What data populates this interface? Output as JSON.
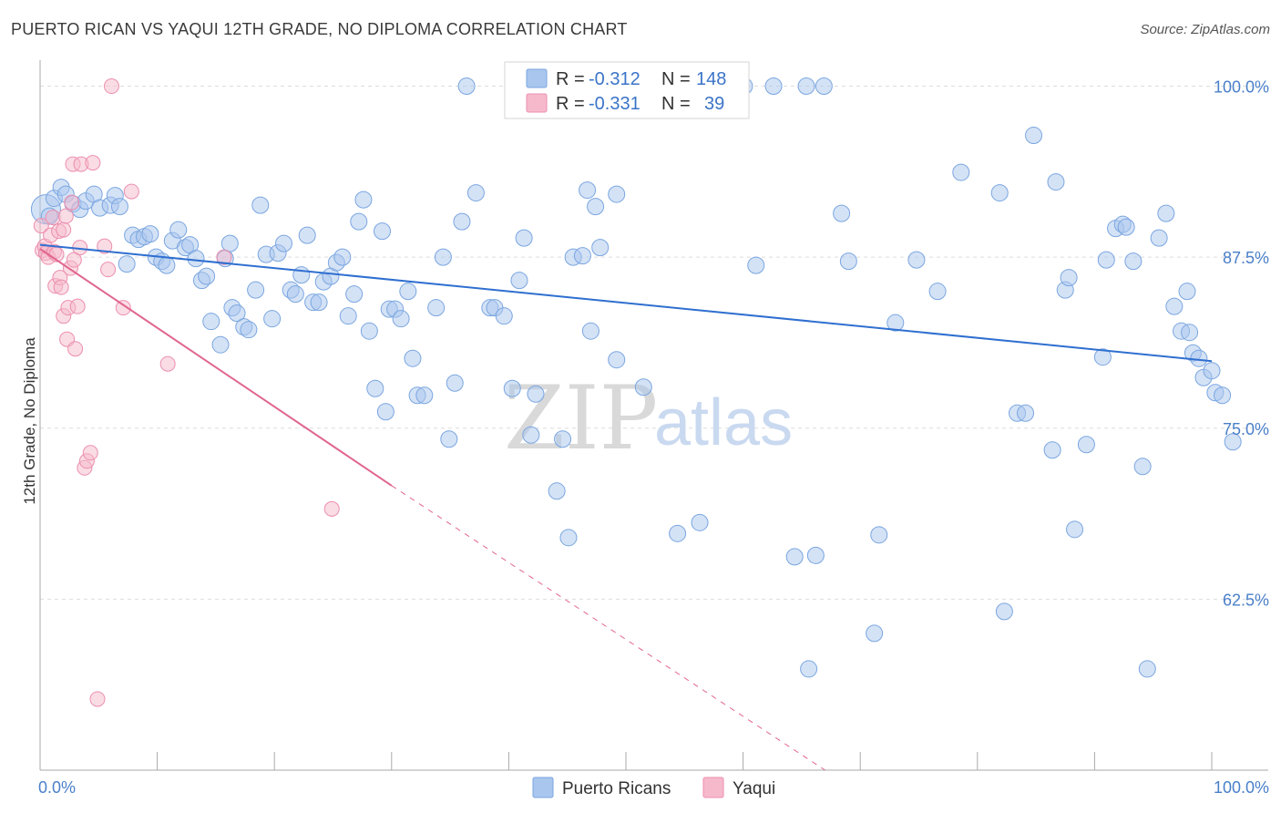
{
  "header": {
    "title": "PUERTO RICAN VS YAQUI 12TH GRADE, NO DIPLOMA CORRELATION CHART",
    "source": "Source: ZipAtlas.com"
  },
  "legend": {
    "rows": [
      {
        "r_label": "R = ",
        "r_value": "-0.312",
        "n_label": "N = ",
        "n_value": "148"
      },
      {
        "r_label": "R = ",
        "r_value": "-0.331",
        "n_label": "N = ",
        "n_value": "39"
      }
    ]
  },
  "bottom_legend": [
    "Puerto Ricans",
    "Yaqui"
  ],
  "watermark": {
    "zip": "ZIP",
    "atlas": "atlas"
  },
  "colors": {
    "blue_fill": "#a9c6ee",
    "blue_stroke": "#7aa6e0",
    "blue_line": "#2f6fd0",
    "pink_fill": "#f6b9cc",
    "pink_stroke": "#ec8fae",
    "pink_line": "#e0668f",
    "grid": "#dddddd",
    "axis": "#aaaaaa"
  },
  "chart_data": {
    "type": "scatter",
    "title": "PUERTO RICAN VS YAQUI 12TH GRADE, NO DIPLOMA CORRELATION CHART",
    "xlabel": "",
    "ylabel": "12th Grade, No Diploma",
    "xlim": [
      0,
      100
    ],
    "ylim": [
      50,
      101.5
    ],
    "x_tick_labels": [
      "0.0%",
      "100.0%"
    ],
    "y_ticks": [
      62.5,
      75.0,
      87.5,
      100.0
    ],
    "y_tick_labels": [
      "62.5%",
      "75.0%",
      "87.5%",
      "100.0%"
    ],
    "grid": true,
    "legend_position": "top-center",
    "series": [
      {
        "name": "Puerto Ricans",
        "r": -0.312,
        "n": 148,
        "trend": {
          "x": [
            0,
            100
          ],
          "y": [
            88.4,
            79.9
          ]
        },
        "points": [
          [
            0.5,
            91
          ],
          [
            0.8,
            90.5
          ],
          [
            1.2,
            91.8
          ],
          [
            1.8,
            92.6
          ],
          [
            2.2,
            92.1
          ],
          [
            2.8,
            91.4
          ],
          [
            3.4,
            91.0
          ],
          [
            3.9,
            91.6
          ],
          [
            4.6,
            92.1
          ],
          [
            5.1,
            91.1
          ],
          [
            6.0,
            91.3
          ],
          [
            6.4,
            92.0
          ],
          [
            6.8,
            91.2
          ],
          [
            7.4,
            87.0
          ],
          [
            7.9,
            89.1
          ],
          [
            8.4,
            88.8
          ],
          [
            8.9,
            89.0
          ],
          [
            9.4,
            89.2
          ],
          [
            9.9,
            87.5
          ],
          [
            10.4,
            87.2
          ],
          [
            10.8,
            86.9
          ],
          [
            11.3,
            88.7
          ],
          [
            11.8,
            89.5
          ],
          [
            12.4,
            88.2
          ],
          [
            12.8,
            88.4
          ],
          [
            13.3,
            87.4
          ],
          [
            13.8,
            85.8
          ],
          [
            14.2,
            86.1
          ],
          [
            14.6,
            82.8
          ],
          [
            15.4,
            81.1
          ],
          [
            15.8,
            87.4
          ],
          [
            16.2,
            88.5
          ],
          [
            16.4,
            83.8
          ],
          [
            16.8,
            83.4
          ],
          [
            17.4,
            82.4
          ],
          [
            17.8,
            82.2
          ],
          [
            18.4,
            85.1
          ],
          [
            18.8,
            91.3
          ],
          [
            19.3,
            87.7
          ],
          [
            19.8,
            83.0
          ],
          [
            20.3,
            87.8
          ],
          [
            20.8,
            88.5
          ],
          [
            21.4,
            85.1
          ],
          [
            21.8,
            84.8
          ],
          [
            22.3,
            86.2
          ],
          [
            22.8,
            89.1
          ],
          [
            23.3,
            84.2
          ],
          [
            23.8,
            84.2
          ],
          [
            24.2,
            85.7
          ],
          [
            24.8,
            86.1
          ],
          [
            25.3,
            87.1
          ],
          [
            25.8,
            87.5
          ],
          [
            26.3,
            83.2
          ],
          [
            26.8,
            84.8
          ],
          [
            27.2,
            90.1
          ],
          [
            27.6,
            91.7
          ],
          [
            28.1,
            82.1
          ],
          [
            28.6,
            77.9
          ],
          [
            29.2,
            89.4
          ],
          [
            29.5,
            76.2
          ],
          [
            29.8,
            83.7
          ],
          [
            30.3,
            83.7
          ],
          [
            30.8,
            83.0
          ],
          [
            31.4,
            85.0
          ],
          [
            31.8,
            80.1
          ],
          [
            32.2,
            77.4
          ],
          [
            32.8,
            77.4
          ],
          [
            33.8,
            83.8
          ],
          [
            34.4,
            87.5
          ],
          [
            34.9,
            74.2
          ],
          [
            35.4,
            78.3
          ],
          [
            36.0,
            90.1
          ],
          [
            36.4,
            100.0
          ],
          [
            37.2,
            92.2
          ],
          [
            38.4,
            83.8
          ],
          [
            38.8,
            83.8
          ],
          [
            39.6,
            83.2
          ],
          [
            40.3,
            77.9
          ],
          [
            40.9,
            85.8
          ],
          [
            41.3,
            88.9
          ],
          [
            41.9,
            74.5
          ],
          [
            42.3,
            77.5
          ],
          [
            44.1,
            70.4
          ],
          [
            44.6,
            74.2
          ],
          [
            45.1,
            67.0
          ],
          [
            45.5,
            87.5
          ],
          [
            46.3,
            87.6
          ],
          [
            46.7,
            92.4
          ],
          [
            47.0,
            82.1
          ],
          [
            47.4,
            91.2
          ],
          [
            47.8,
            88.2
          ],
          [
            49.2,
            92.1
          ],
          [
            49.2,
            80.0
          ],
          [
            51.5,
            78.0
          ],
          [
            51.7,
            100.0
          ],
          [
            54.4,
            67.3
          ],
          [
            54.6,
            100.0
          ],
          [
            56.3,
            68.1
          ],
          [
            57.9,
            100.0
          ],
          [
            58.6,
            100.0
          ],
          [
            60.1,
            100.0
          ],
          [
            61.1,
            86.9
          ],
          [
            62.6,
            100.0
          ],
          [
            64.4,
            65.6
          ],
          [
            65.4,
            100.0
          ],
          [
            65.6,
            57.4
          ],
          [
            66.2,
            65.7
          ],
          [
            66.9,
            100.0
          ],
          [
            68.4,
            90.7
          ],
          [
            69.0,
            87.2
          ],
          [
            71.2,
            60.0
          ],
          [
            71.6,
            67.2
          ],
          [
            73.0,
            82.7
          ],
          [
            74.8,
            87.3
          ],
          [
            76.6,
            85.0
          ],
          [
            78.6,
            93.7
          ],
          [
            81.9,
            92.2
          ],
          [
            82.3,
            61.6
          ],
          [
            83.4,
            76.1
          ],
          [
            84.1,
            76.1
          ],
          [
            84.8,
            96.4
          ],
          [
            86.4,
            73.4
          ],
          [
            86.7,
            93.0
          ],
          [
            87.5,
            85.1
          ],
          [
            87.8,
            86.0
          ],
          [
            88.3,
            67.6
          ],
          [
            89.3,
            73.8
          ],
          [
            90.7,
            80.2
          ],
          [
            91.0,
            87.3
          ],
          [
            91.8,
            89.6
          ],
          [
            92.4,
            89.9
          ],
          [
            92.7,
            89.7
          ],
          [
            93.3,
            87.2
          ],
          [
            94.1,
            72.2
          ],
          [
            94.5,
            57.4
          ],
          [
            95.5,
            88.9
          ],
          [
            96.1,
            90.7
          ],
          [
            96.8,
            83.9
          ],
          [
            97.4,
            82.1
          ],
          [
            97.9,
            85.0
          ],
          [
            98.1,
            82.0
          ],
          [
            98.4,
            80.5
          ],
          [
            98.9,
            80.1
          ],
          [
            99.3,
            78.7
          ],
          [
            100.0,
            79.2
          ],
          [
            100.3,
            77.6
          ],
          [
            100.9,
            77.4
          ],
          [
            101.8,
            74.0
          ]
        ]
      },
      {
        "name": "Yaqui",
        "r": -0.331,
        "n": 39,
        "trend": {
          "x": [
            0,
            30
          ],
          "y": [
            88.1,
            70.8
          ]
        },
        "trend_dashed": {
          "x": [
            30,
            67
          ],
          "y": [
            70.8,
            50.0
          ]
        },
        "points": [
          [
            0.1,
            89.8
          ],
          [
            0.2,
            88.0
          ],
          [
            0.4,
            88.3
          ],
          [
            0.5,
            87.8
          ],
          [
            0.7,
            87.5
          ],
          [
            0.9,
            89.1
          ],
          [
            1.1,
            90.4
          ],
          [
            1.2,
            87.9
          ],
          [
            1.3,
            85.4
          ],
          [
            1.4,
            87.7
          ],
          [
            1.6,
            89.4
          ],
          [
            1.7,
            86.0
          ],
          [
            1.8,
            85.3
          ],
          [
            2.0,
            83.2
          ],
          [
            2.0,
            89.5
          ],
          [
            2.2,
            90.5
          ],
          [
            2.3,
            81.5
          ],
          [
            2.4,
            83.8
          ],
          [
            2.6,
            86.7
          ],
          [
            2.7,
            91.5
          ],
          [
            2.8,
            94.3
          ],
          [
            2.9,
            87.3
          ],
          [
            3.0,
            80.8
          ],
          [
            3.2,
            83.9
          ],
          [
            3.4,
            88.2
          ],
          [
            3.5,
            94.3
          ],
          [
            3.8,
            72.1
          ],
          [
            4.0,
            72.6
          ],
          [
            4.3,
            73.2
          ],
          [
            4.5,
            94.4
          ],
          [
            4.9,
            55.2
          ],
          [
            5.5,
            88.3
          ],
          [
            5.8,
            86.6
          ],
          [
            6.1,
            100.0
          ],
          [
            7.1,
            83.8
          ],
          [
            7.8,
            92.3
          ],
          [
            10.9,
            79.7
          ],
          [
            15.7,
            87.5
          ],
          [
            24.9,
            69.1
          ]
        ]
      }
    ]
  }
}
